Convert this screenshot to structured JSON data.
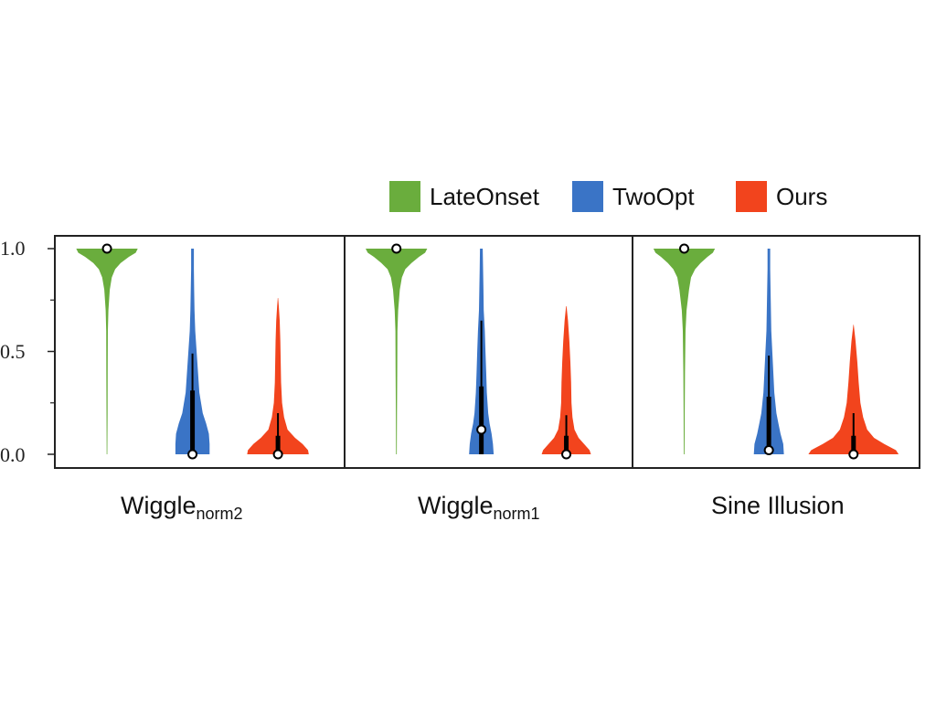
{
  "legend": [
    {
      "label": "LateOnset",
      "color": "#6aad3d"
    },
    {
      "label": "TwoOpt",
      "color": "#3a74c6"
    },
    {
      "label": "Ours",
      "color": "#f2441d"
    }
  ],
  "y_ticks": [
    "0.0",
    "0.5",
    "1.0"
  ],
  "chart_data": {
    "type": "violin",
    "ylim": [
      0,
      1
    ],
    "y_ticks": [
      0,
      0.5,
      1.0
    ],
    "legend_position": "top-right",
    "series": [
      "LateOnset",
      "TwoOpt",
      "Ours"
    ],
    "panels": [
      {
        "title": "Wiggle",
        "subscript": "norm2",
        "violins": [
          {
            "series": "LateOnset",
            "min": 0.0,
            "max": 1.0,
            "q1": 1.0,
            "q3": 1.0,
            "median": 1.0,
            "profile": [
              [
                0.0,
                0.005
              ],
              [
                0.2,
                0.008
              ],
              [
                0.4,
                0.01
              ],
              [
                0.6,
                0.012
              ],
              [
                0.7,
                0.02
              ],
              [
                0.8,
                0.04
              ],
              [
                0.86,
                0.07
              ],
              [
                0.9,
                0.12
              ],
              [
                0.93,
                0.2
              ],
              [
                0.96,
                0.32
              ],
              [
                0.98,
                0.42
              ],
              [
                1.0,
                0.45
              ]
            ]
          },
          {
            "series": "TwoOpt",
            "min": 0.0,
            "max": 1.0,
            "q1": 0.0,
            "q3": 0.31,
            "median": 0.0,
            "whisker_high": 0.49,
            "profile": [
              [
                0.0,
                0.25
              ],
              [
                0.05,
                0.25
              ],
              [
                0.1,
                0.24
              ],
              [
                0.15,
                0.2
              ],
              [
                0.2,
                0.15
              ],
              [
                0.3,
                0.1
              ],
              [
                0.4,
                0.08
              ],
              [
                0.5,
                0.06
              ],
              [
                0.6,
                0.04
              ],
              [
                0.7,
                0.03
              ],
              [
                0.8,
                0.025
              ],
              [
                0.9,
                0.02
              ],
              [
                1.0,
                0.02
              ]
            ]
          },
          {
            "series": "Ours",
            "min": 0.0,
            "max": 0.76,
            "q1": 0.0,
            "q3": 0.09,
            "median": 0.0,
            "whisker_high": 0.2,
            "profile": [
              [
                0.0,
                0.45
              ],
              [
                0.02,
                0.44
              ],
              [
                0.05,
                0.36
              ],
              [
                0.08,
                0.25
              ],
              [
                0.12,
                0.14
              ],
              [
                0.18,
                0.09
              ],
              [
                0.25,
                0.06
              ],
              [
                0.35,
                0.045
              ],
              [
                0.45,
                0.04
              ],
              [
                0.55,
                0.035
              ],
              [
                0.65,
                0.025
              ],
              [
                0.72,
                0.012
              ],
              [
                0.76,
                0.003
              ]
            ]
          }
        ]
      },
      {
        "title": "Wiggle",
        "subscript": "norm1",
        "violins": [
          {
            "series": "LateOnset",
            "min": 0.0,
            "max": 1.0,
            "q1": 1.0,
            "q3": 1.0,
            "median": 1.0,
            "profile": [
              [
                0.0,
                0.005
              ],
              [
                0.2,
                0.008
              ],
              [
                0.4,
                0.012
              ],
              [
                0.6,
                0.015
              ],
              [
                0.7,
                0.025
              ],
              [
                0.8,
                0.05
              ],
              [
                0.86,
                0.08
              ],
              [
                0.9,
                0.13
              ],
              [
                0.93,
                0.22
              ],
              [
                0.96,
                0.33
              ],
              [
                0.98,
                0.42
              ],
              [
                1.0,
                0.45
              ]
            ]
          },
          {
            "series": "TwoOpt",
            "min": 0.0,
            "max": 1.0,
            "q1": 0.0,
            "q3": 0.33,
            "median": 0.12,
            "whisker_high": 0.65,
            "profile": [
              [
                0.0,
                0.18
              ],
              [
                0.05,
                0.17
              ],
              [
                0.1,
                0.15
              ],
              [
                0.15,
                0.12
              ],
              [
                0.2,
                0.1
              ],
              [
                0.3,
                0.08
              ],
              [
                0.4,
                0.07
              ],
              [
                0.5,
                0.06
              ],
              [
                0.6,
                0.05
              ],
              [
                0.7,
                0.035
              ],
              [
                0.8,
                0.03
              ],
              [
                0.9,
                0.025
              ],
              [
                1.0,
                0.02
              ]
            ]
          },
          {
            "series": "Ours",
            "min": 0.0,
            "max": 0.72,
            "q1": 0.0,
            "q3": 0.09,
            "median": 0.0,
            "whisker_high": 0.19,
            "profile": [
              [
                0.0,
                0.36
              ],
              [
                0.02,
                0.34
              ],
              [
                0.05,
                0.26
              ],
              [
                0.08,
                0.18
              ],
              [
                0.12,
                0.12
              ],
              [
                0.18,
                0.09
              ],
              [
                0.25,
                0.075
              ],
              [
                0.35,
                0.07
              ],
              [
                0.45,
                0.06
              ],
              [
                0.55,
                0.045
              ],
              [
                0.65,
                0.025
              ],
              [
                0.72,
                0.003
              ]
            ]
          }
        ]
      },
      {
        "title": "Sine Illusion",
        "subscript": "",
        "violins": [
          {
            "series": "LateOnset",
            "min": 0.0,
            "max": 1.0,
            "q1": 1.0,
            "q3": 1.0,
            "median": 1.0,
            "profile": [
              [
                0.0,
                0.005
              ],
              [
                0.2,
                0.008
              ],
              [
                0.4,
                0.012
              ],
              [
                0.6,
                0.02
              ],
              [
                0.7,
                0.035
              ],
              [
                0.8,
                0.07
              ],
              [
                0.86,
                0.1
              ],
              [
                0.9,
                0.16
              ],
              [
                0.93,
                0.24
              ],
              [
                0.96,
                0.34
              ],
              [
                0.98,
                0.42
              ],
              [
                1.0,
                0.45
              ]
            ]
          },
          {
            "series": "TwoOpt",
            "min": 0.0,
            "max": 1.0,
            "q1": 0.0,
            "q3": 0.28,
            "median": 0.02,
            "whisker_high": 0.48,
            "profile": [
              [
                0.0,
                0.22
              ],
              [
                0.05,
                0.21
              ],
              [
                0.1,
                0.17
              ],
              [
                0.15,
                0.14
              ],
              [
                0.2,
                0.11
              ],
              [
                0.3,
                0.08
              ],
              [
                0.4,
                0.065
              ],
              [
                0.5,
                0.05
              ],
              [
                0.6,
                0.035
              ],
              [
                0.7,
                0.03
              ],
              [
                0.8,
                0.025
              ],
              [
                0.9,
                0.02
              ],
              [
                1.0,
                0.02
              ]
            ]
          },
          {
            "series": "Ours",
            "min": 0.0,
            "max": 0.63,
            "q1": 0.0,
            "q3": 0.09,
            "median": 0.0,
            "whisker_high": 0.2,
            "profile": [
              [
                0.0,
                0.66
              ],
              [
                0.02,
                0.62
              ],
              [
                0.05,
                0.45
              ],
              [
                0.08,
                0.3
              ],
              [
                0.12,
                0.2
              ],
              [
                0.18,
                0.14
              ],
              [
                0.25,
                0.1
              ],
              [
                0.35,
                0.075
              ],
              [
                0.45,
                0.055
              ],
              [
                0.55,
                0.03
              ],
              [
                0.63,
                0.003
              ]
            ]
          }
        ]
      }
    ]
  }
}
